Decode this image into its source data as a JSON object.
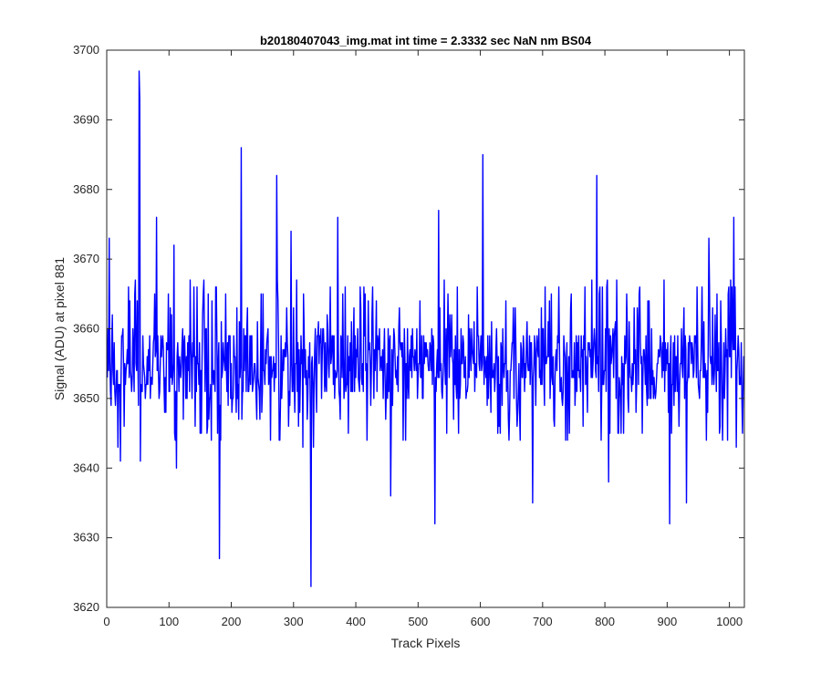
{
  "chart_data": {
    "type": "line",
    "title": "b20180407043_img.mat int time = 2.3332 sec  NaN nm BS04",
    "xlabel": "Track Pixels",
    "ylabel": "Signal (ADU) at pixel 881",
    "xlim": [
      0,
      1024
    ],
    "ylim": [
      3620,
      3700
    ],
    "xticks": [
      0,
      100,
      200,
      300,
      400,
      500,
      600,
      700,
      800,
      900,
      1000
    ],
    "yticks": [
      3620,
      3630,
      3640,
      3650,
      3660,
      3670,
      3680,
      3690,
      3700
    ],
    "grid": false,
    "legend": "none",
    "series": [
      {
        "color": "#0000ff",
        "n_points": 1024,
        "baseline": 3655,
        "noise_range": [
          3643,
          3667
        ],
        "peaks": [
          {
            "x": 3,
            "y": 3673
          },
          {
            "x": 51,
            "y": 3697
          },
          {
            "x": 52,
            "y": 3693
          },
          {
            "x": 79,
            "y": 3676
          },
          {
            "x": 107,
            "y": 3672
          },
          {
            "x": 215,
            "y": 3686
          },
          {
            "x": 272,
            "y": 3682
          },
          {
            "x": 295,
            "y": 3674
          },
          {
            "x": 370,
            "y": 3676
          },
          {
            "x": 532,
            "y": 3677
          },
          {
            "x": 603,
            "y": 3685
          },
          {
            "x": 786,
            "y": 3682
          },
          {
            "x": 966,
            "y": 3673
          },
          {
            "x": 1006,
            "y": 3676
          }
        ],
        "dips": [
          {
            "x": 21,
            "y": 3641
          },
          {
            "x": 53,
            "y": 3641
          },
          {
            "x": 111,
            "y": 3640
          },
          {
            "x": 180,
            "y": 3627
          },
          {
            "x": 327,
            "y": 3623
          },
          {
            "x": 455,
            "y": 3636
          },
          {
            "x": 526,
            "y": 3632
          },
          {
            "x": 683,
            "y": 3635
          },
          {
            "x": 805,
            "y": 3638
          },
          {
            "x": 903,
            "y": 3632
          },
          {
            "x": 930,
            "y": 3635
          }
        ]
      }
    ]
  }
}
